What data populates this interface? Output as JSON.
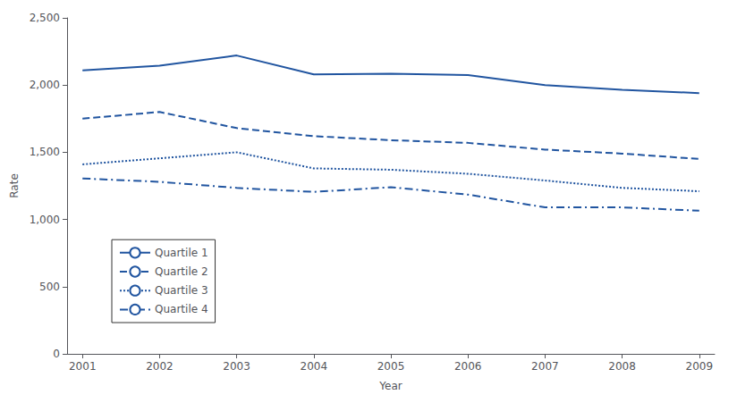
{
  "chart_data": {
    "type": "line",
    "x": [
      2001,
      2002,
      2003,
      2004,
      2005,
      2006,
      2007,
      2008,
      2009
    ],
    "xlim": [
      2000.8,
      2009.2
    ],
    "xticks": [
      2001,
      2002,
      2003,
      2004,
      2005,
      2006,
      2007,
      2008,
      2009
    ],
    "ylim": [
      0,
      2500
    ],
    "yticks": [
      0,
      500,
      {
        "value": 1000,
        "label": "1,000"
      },
      {
        "value": 1500,
        "label": "1,500"
      },
      {
        "value": 2000,
        "label": "2,000"
      },
      {
        "value": 2500,
        "label": "2,500"
      }
    ],
    "xlabel": "Year",
    "ylabel": "Rate",
    "grid": false,
    "legend": "lower left",
    "series": [
      {
        "name": "Quartile 1",
        "color": "#2155a0",
        "line_style": "solid",
        "values": [
          2110,
          2145,
          2220,
          2080,
          2085,
          2075,
          2000,
          1965,
          1940
        ]
      },
      {
        "name": "Quartile 2",
        "color": "#2155a0",
        "line_style": "dashed",
        "values": [
          1750,
          1800,
          1680,
          1620,
          1590,
          1570,
          1520,
          1490,
          1450
        ]
      },
      {
        "name": "Quartile 3",
        "color": "#2155a0",
        "line_style": "dotted",
        "values": [
          1410,
          1455,
          1500,
          1380,
          1370,
          1340,
          1290,
          1235,
          1210
        ]
      },
      {
        "name": "Quartile 4",
        "color": "#2155a0",
        "line_style": "dashdot",
        "values": [
          1305,
          1280,
          1235,
          1205,
          1240,
          1185,
          1090,
          1090,
          1065
        ]
      }
    ]
  }
}
